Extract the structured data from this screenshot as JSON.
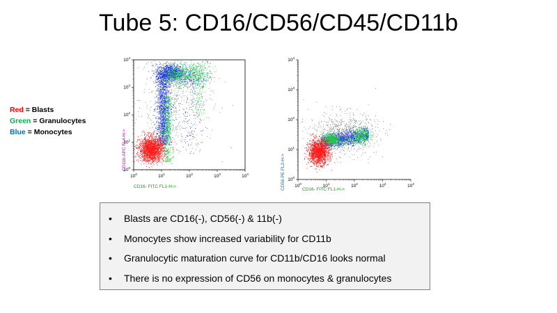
{
  "title": {
    "bold_part": "Tube 5:",
    "rest": " CD16/CD56/CD45/CD11b"
  },
  "legend": [
    {
      "color_name": "Red",
      "text": " = Blasts",
      "color": "#ff0000"
    },
    {
      "color_name": "Green",
      "text": " = Granulocytes",
      "color": "#00b050"
    },
    {
      "color_name": "Blue",
      "text": " = Monocytes",
      "color": "#0070c0"
    }
  ],
  "colors": {
    "blasts": "#ff1a1a",
    "granulocytes": "#22cc44",
    "monocytes": "#1a33dd",
    "background_events": "#555555"
  },
  "plots": [
    {
      "id": "left",
      "ylabel": "CD11b APC FL4-H->",
      "ylabel_color": "#cc00cc",
      "xlabel": "CD16- FITC FL1-H->",
      "xlabel_color": "#00aa00",
      "xticks": [
        "10^0",
        "10^1",
        "10^2",
        "10^3",
        "10^4"
      ],
      "yticks": [
        "10^0",
        "10^1",
        "10^2",
        "10^3",
        "10^4"
      ]
    },
    {
      "id": "right",
      "ylabel": "CD56 PE FL2-H->",
      "ylabel_color": "#1a5fcc",
      "xlabel": "CD16- FITC FL1-H->",
      "xlabel_color": "#00aa00",
      "xticks": [
        "10^0",
        "10^1",
        "10^2",
        "10^3",
        "10^4"
      ],
      "yticks": [
        "10^0",
        "10^1",
        "10^2",
        "10^3",
        "10^4"
      ]
    }
  ],
  "bullets": [
    "Blasts are CD16(-), CD56(-) & 11b(-)",
    "Monocytes show increased variability for CD11b",
    "Granulocytic maturation curve for CD11b/CD16 looks normal",
    "There is no expression of CD56 on monocytes & granulocytes"
  ]
}
